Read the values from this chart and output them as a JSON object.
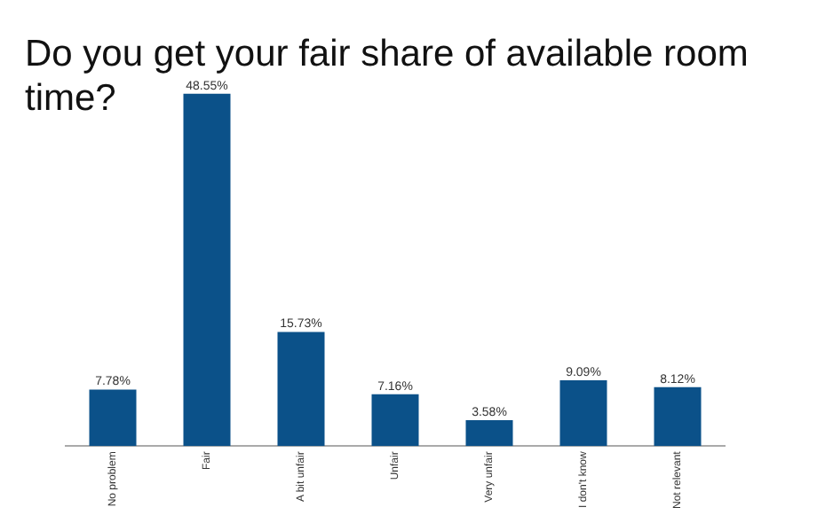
{
  "chart_data": {
    "type": "bar",
    "title": "Do you get your fair share of available room time?",
    "categories": [
      "No problem",
      "Fair",
      "A bit unfair",
      "Unfair",
      "Very unfair",
      "I don't know",
      "Not relevant"
    ],
    "values": [
      7.78,
      48.55,
      15.73,
      7.16,
      3.58,
      9.09,
      8.12
    ],
    "value_labels": [
      "7.78%",
      "48.55%",
      "15.73%",
      "7.16%",
      "3.58%",
      "9.09%",
      "8.12%"
    ],
    "color": "#0b5189",
    "grid": false,
    "legend": false
  }
}
